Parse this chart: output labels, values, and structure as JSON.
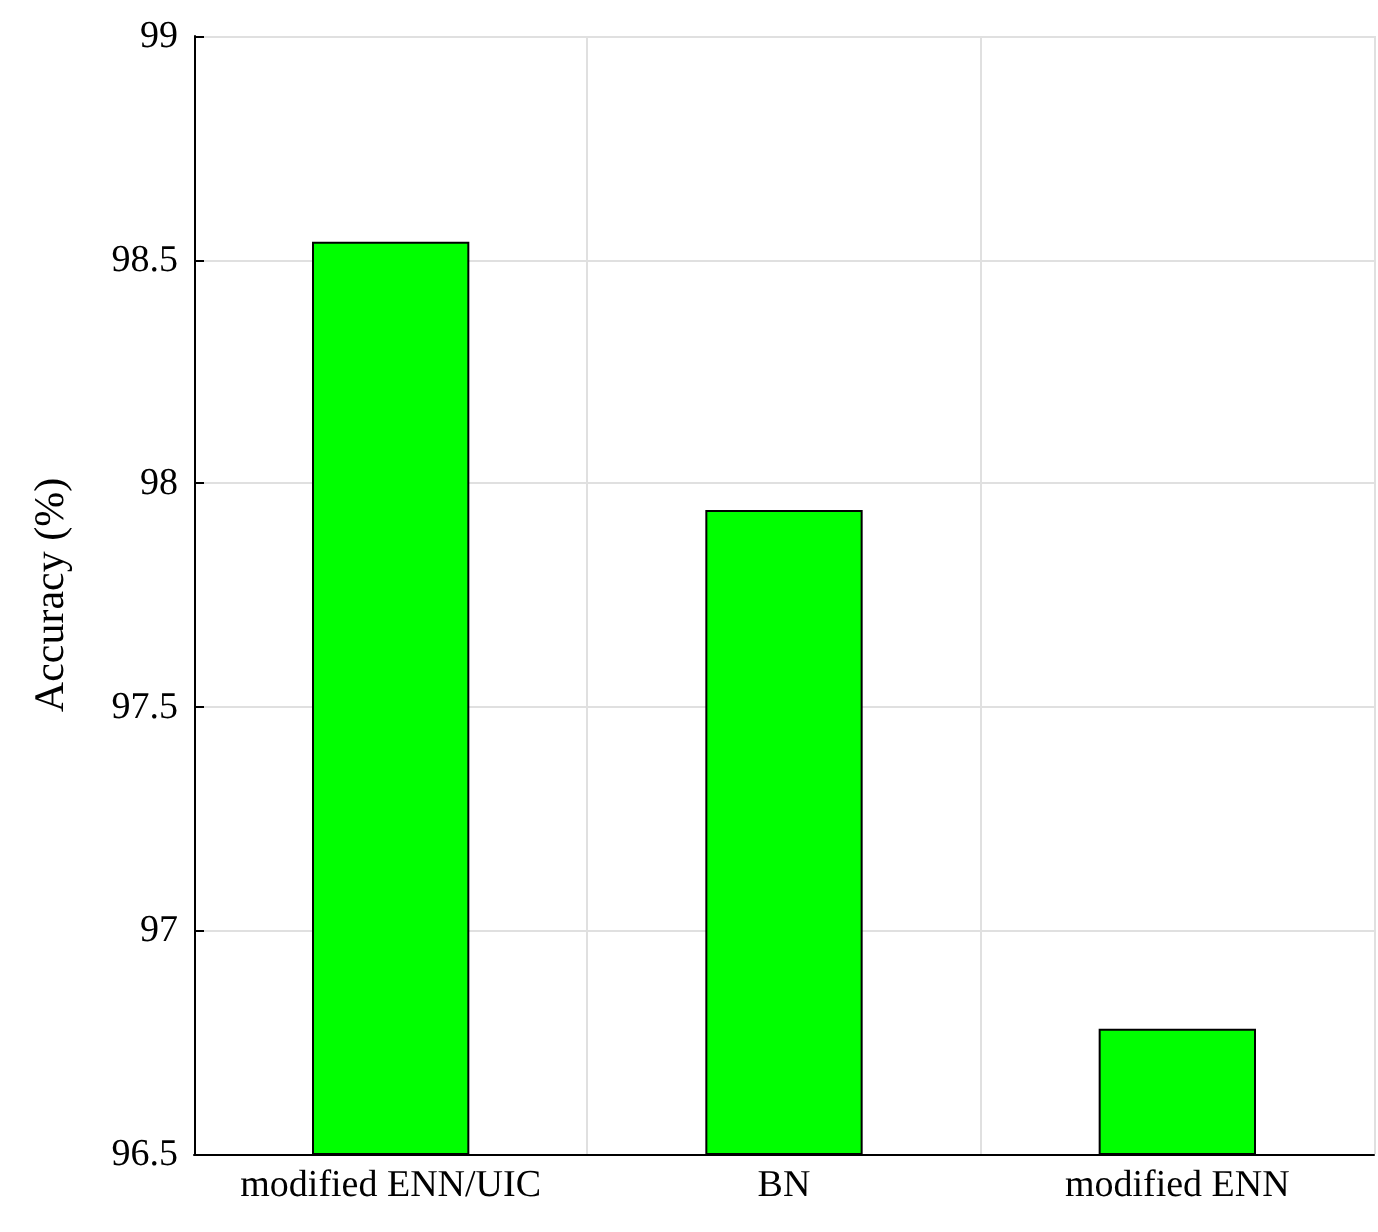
{
  "chart_data": {
    "type": "bar",
    "ylabel": "Accuracy (%)",
    "categories": [
      "modified ENN/UIC",
      "BN",
      "modified ENN"
    ],
    "values": [
      98.54,
      97.94,
      96.78
    ],
    "color": "#00ff00",
    "ylim": [
      96.5,
      99
    ],
    "yticks": [
      96.5,
      97,
      97.5,
      98,
      98.5,
      99
    ],
    "grid": true
  }
}
